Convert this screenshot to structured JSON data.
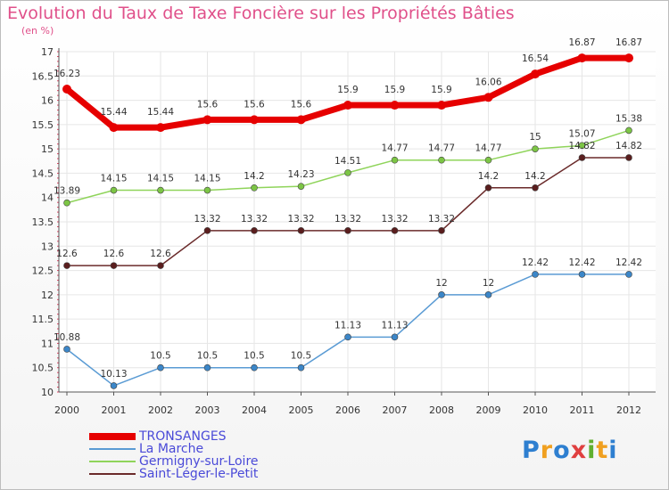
{
  "title": "Evolution du Taux de Taxe Foncière sur les Propriétés Bâties",
  "unit": "(en %)",
  "logo": {
    "letters": [
      "P",
      "r",
      "o",
      "x",
      "i",
      "t",
      "i"
    ],
    "colors": [
      "#2e7fd0",
      "#f0a020",
      "#2e7fd0",
      "#e04040",
      "#60b030",
      "#f0a020",
      "#2e7fd0"
    ]
  },
  "legend_colors": [
    "#e60000",
    "#5a9bd4",
    "#8fd45a",
    "#6a2a2a"
  ],
  "chart_data": {
    "type": "line",
    "title": "Evolution du Taux de Taxe Foncière sur les Propriétés Bâties",
    "ylabel": "(en %)",
    "xlabel": "",
    "ylim": [
      10,
      17
    ],
    "yticks": [
      "10",
      "10.5",
      "11",
      "11.5",
      "12",
      "12.5",
      "13",
      "13.5",
      "14",
      "14.5",
      "15",
      "15.5",
      "16",
      "16.5",
      "17"
    ],
    "categories": [
      "2000",
      "2001",
      "2002",
      "2003",
      "2004",
      "2005",
      "2006",
      "2007",
      "2008",
      "2009",
      "2010",
      "2011",
      "2012"
    ],
    "series": [
      {
        "name": "TRONSANGES",
        "values": [
          16.23,
          15.44,
          15.44,
          15.6,
          15.6,
          15.6,
          15.9,
          15.9,
          15.9,
          16.06,
          16.54,
          16.87,
          16.87
        ],
        "labels": [
          "16.23",
          "15.44",
          "15.44",
          "15.6",
          "15.6",
          "15.6",
          "15.9",
          "15.9",
          "15.9",
          "16.06",
          "16.54",
          "16.87",
          "16.87"
        ]
      },
      {
        "name": "La Marche",
        "values": [
          10.88,
          10.13,
          10.5,
          10.5,
          10.5,
          10.5,
          11.13,
          11.13,
          12,
          12,
          12.42,
          12.42,
          12.42
        ],
        "labels": [
          "10.88",
          "10.13",
          "10.5",
          "10.5",
          "10.5",
          "10.5",
          "11.13",
          "11.13",
          "12",
          "12",
          "12.42",
          "12.42",
          "12.42"
        ]
      },
      {
        "name": "Germigny-sur-Loire",
        "values": [
          13.89,
          14.15,
          14.15,
          14.15,
          14.2,
          14.23,
          14.51,
          14.77,
          14.77,
          14.77,
          15,
          15.07,
          15.38
        ],
        "labels": [
          "13.89",
          "14.15",
          "14.15",
          "14.15",
          "14.2",
          "14.23",
          "14.51",
          "14.77",
          "14.77",
          "14.77",
          "15",
          "15.07",
          "15.38"
        ]
      },
      {
        "name": "Saint-Léger-le-Petit",
        "values": [
          12.6,
          12.6,
          12.6,
          13.32,
          13.32,
          13.32,
          13.32,
          13.32,
          13.32,
          14.2,
          14.2,
          14.82,
          14.82
        ],
        "labels": [
          "12.6",
          "12.6",
          "12.6",
          "13.32",
          "13.32",
          "13.32",
          "13.32",
          "13.32",
          "13.32",
          "14.2",
          "14.2",
          "14.82",
          "14.82"
        ]
      }
    ]
  }
}
